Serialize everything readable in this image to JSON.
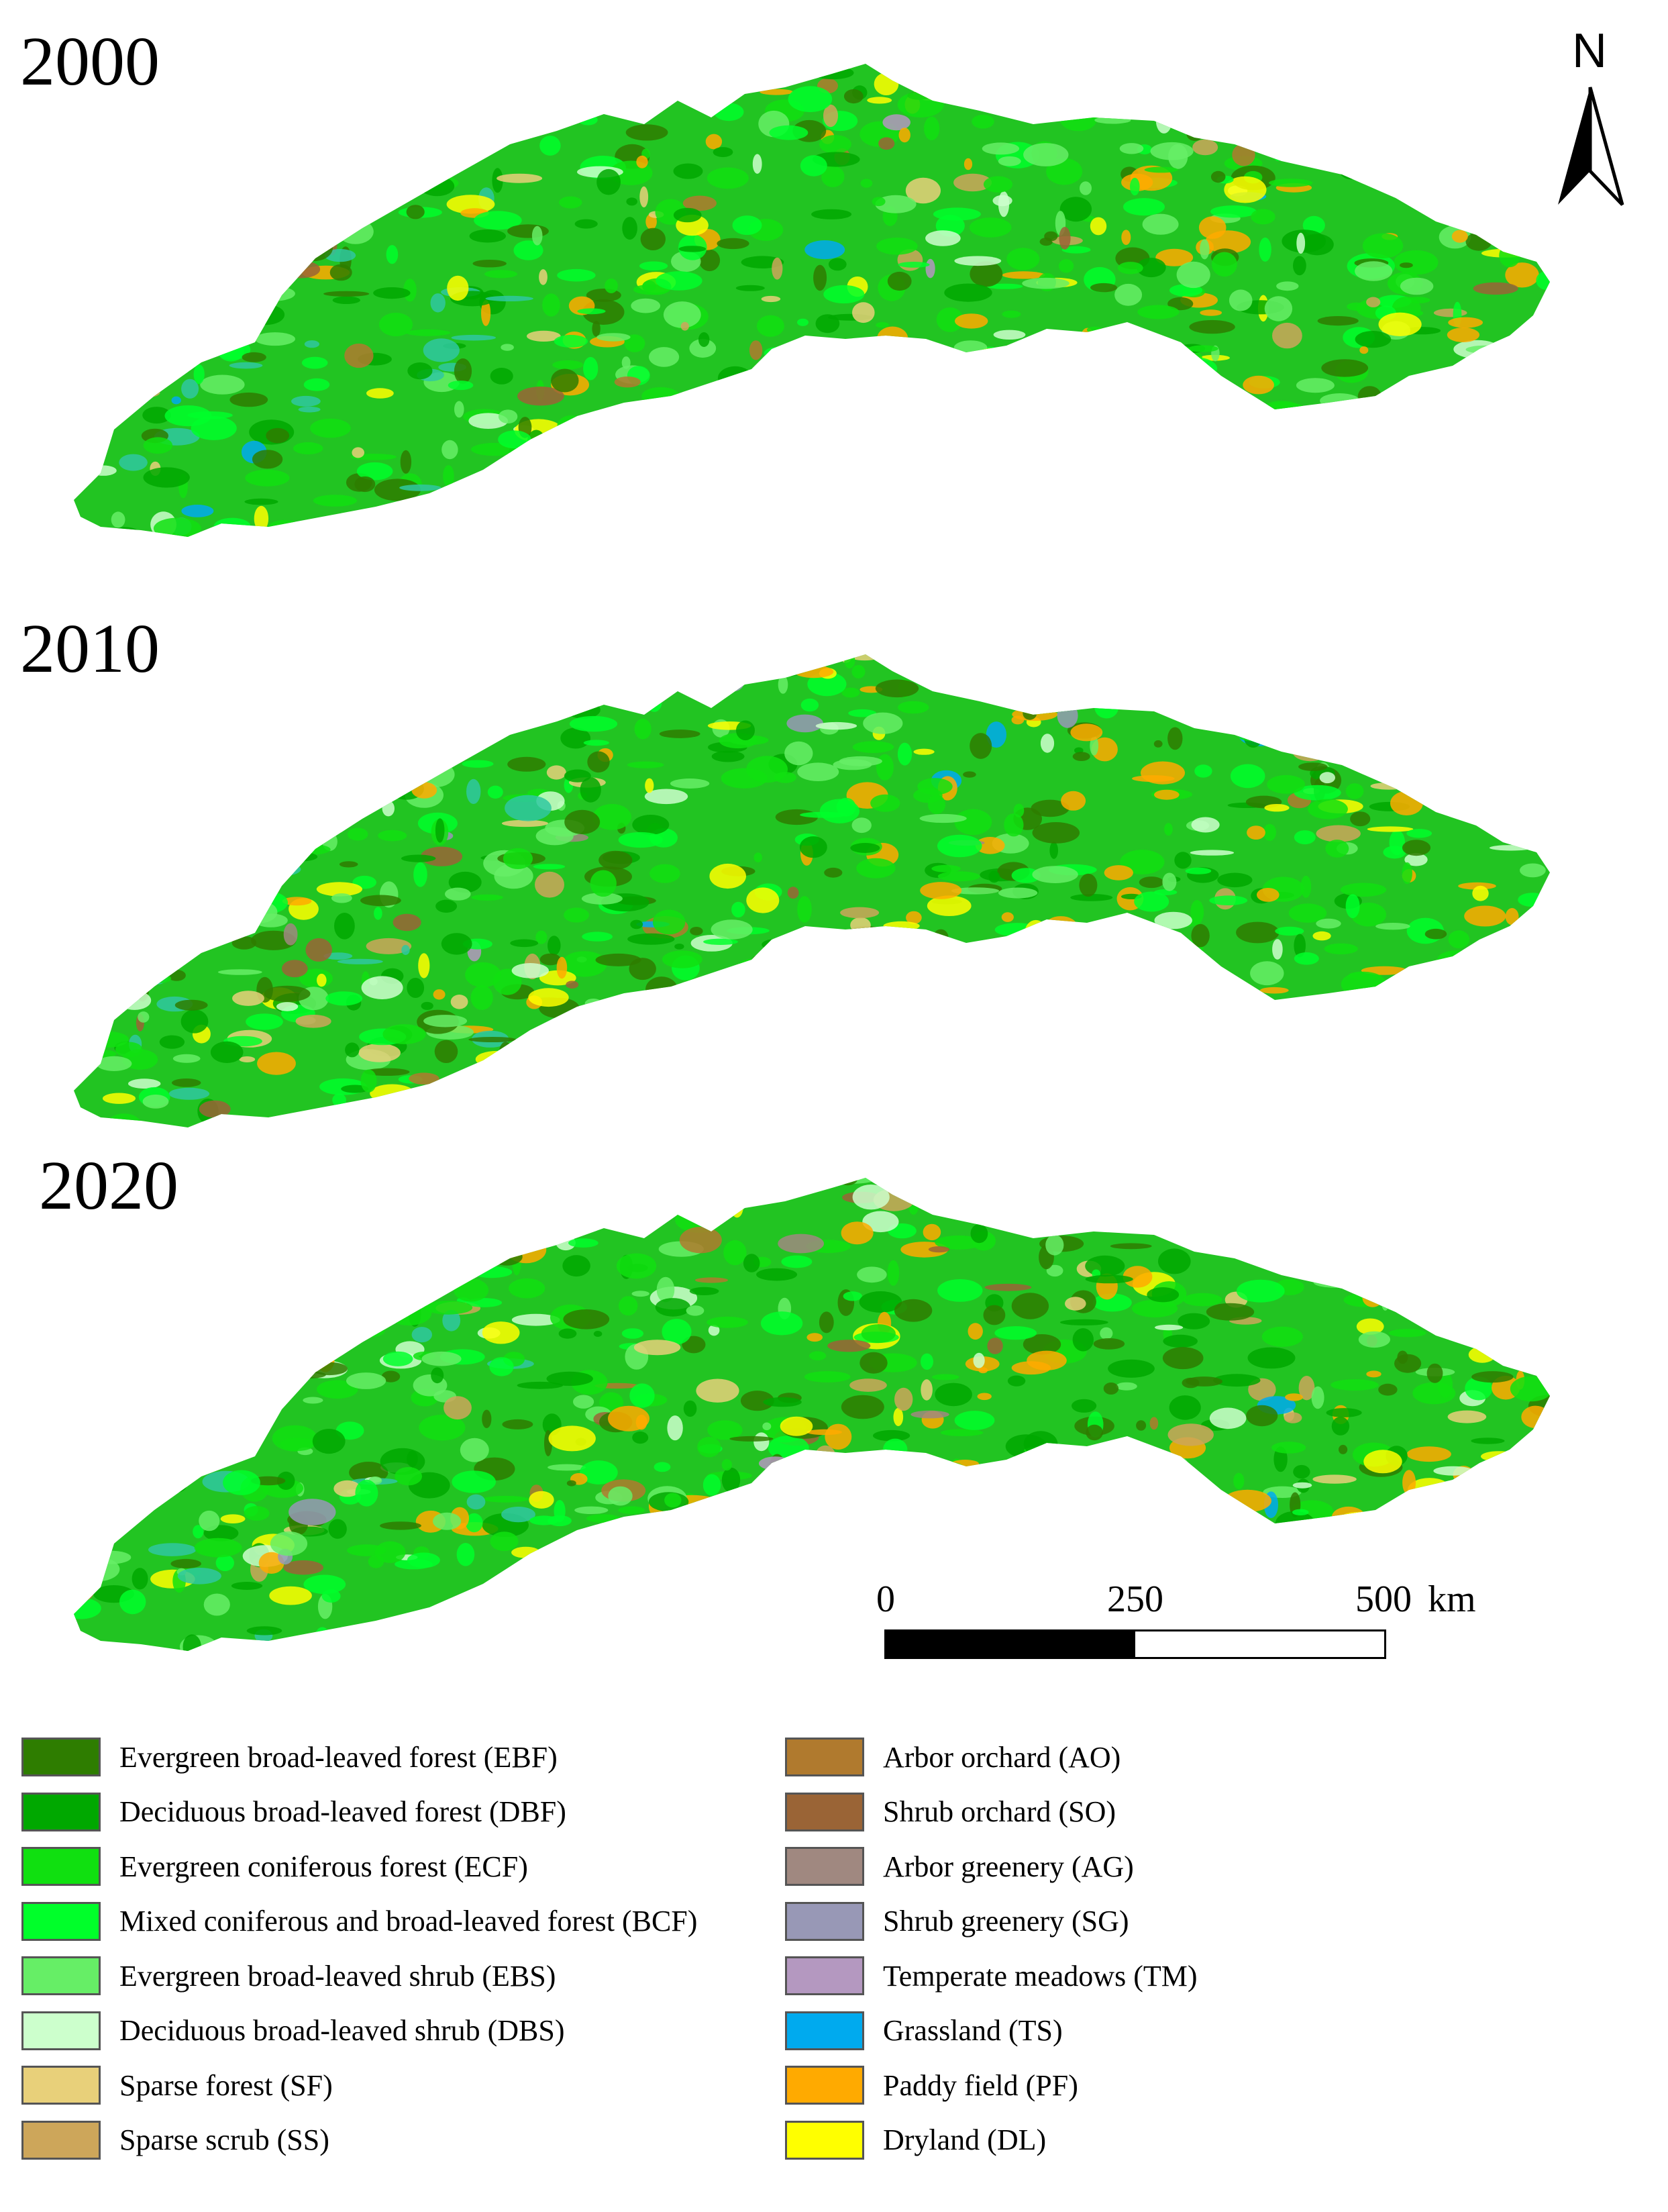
{
  "panels": [
    {
      "year": "2000"
    },
    {
      "year": "2010"
    },
    {
      "year": "2020"
    }
  ],
  "north_arrow": {
    "label": "N"
  },
  "scale_bar": {
    "ticks": [
      "0",
      "250",
      "500"
    ],
    "unit": "km",
    "filled_fraction": 0.5
  },
  "legend": {
    "left": [
      {
        "label": "Evergreen broad-leaved forest (EBF)",
        "color": "#2e7d00"
      },
      {
        "label": "Deciduous broad-leaved forest (DBF)",
        "color": "#00a800"
      },
      {
        "label": "Evergreen coniferous forest (ECF)",
        "color": "#10e010"
      },
      {
        "label": "Mixed coniferous and broad-leaved forest (BCF)",
        "color": "#00ff2a"
      },
      {
        "label": "Evergreen broad-leaved shrub (EBS)",
        "color": "#66ee66"
      },
      {
        "label": "Deciduous broad-leaved shrub (DBS)",
        "color": "#ccffcc"
      },
      {
        "label": "Sparse forest (SF)",
        "color": "#e8d07a"
      },
      {
        "label": "Sparse scrub (SS)",
        "color": "#cda65a"
      }
    ],
    "right": [
      {
        "label": "Arbor orchard (AO)",
        "color": "#b07a2e"
      },
      {
        "label": "Shrub orchard (SO)",
        "color": "#9a6436"
      },
      {
        "label": "Arbor greenery (AG)",
        "color": "#a08880"
      },
      {
        "label": "Shrub greenery (SG)",
        "color": "#9898b6"
      },
      {
        "label": "Temperate meadows (TM)",
        "color": "#b498c0"
      },
      {
        "label": "Grassland (TS)",
        "color": "#00aaee"
      },
      {
        "label": "Paddy field (PF)",
        "color": "#ffaa00"
      },
      {
        "label": "Dryland (DL)",
        "color": "#ffff00"
      }
    ]
  }
}
